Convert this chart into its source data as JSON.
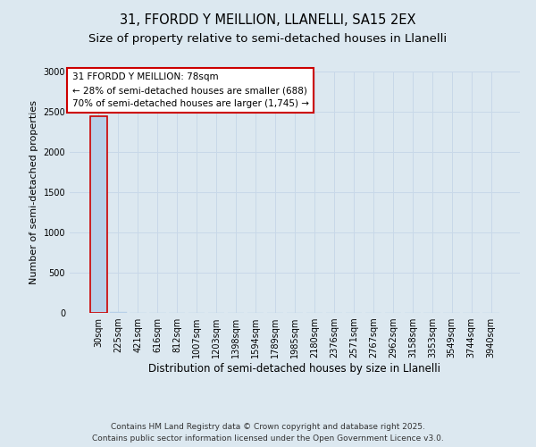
{
  "title_line1": "31, FFORDD Y MEILLION, LLANELLI, SA15 2EX",
  "title_line2": "Size of property relative to semi-detached houses in Llanelli",
  "xlabel": "Distribution of semi-detached houses by size in Llanelli",
  "ylabel": "Number of semi-detached properties",
  "categories": [
    "30sqm",
    "225sqm",
    "421sqm",
    "616sqm",
    "812sqm",
    "1007sqm",
    "1203sqm",
    "1398sqm",
    "1594sqm",
    "1789sqm",
    "1985sqm",
    "2180sqm",
    "2376sqm",
    "2571sqm",
    "2767sqm",
    "2962sqm",
    "3158sqm",
    "3353sqm",
    "3549sqm",
    "3744sqm",
    "3940sqm"
  ],
  "values": [
    2450,
    15,
    2,
    1,
    0,
    0,
    0,
    0,
    0,
    0,
    0,
    0,
    0,
    0,
    0,
    0,
    0,
    0,
    0,
    0,
    0
  ],
  "bar_color": "#b8d0e8",
  "bar_edge_color": "#b8d0e8",
  "highlight_bar_edge_color": "#cc0000",
  "ylim": [
    0,
    3000
  ],
  "yticks": [
    0,
    500,
    1000,
    1500,
    2000,
    2500,
    3000
  ],
  "annotation_text_line1": "31 FFORDD Y MEILLION: 78sqm",
  "annotation_text_line2": "← 28% of semi-detached houses are smaller (688)",
  "annotation_text_line3": "70% of semi-detached houses are larger (1,745) →",
  "annotation_box_color": "#ffffff",
  "annotation_box_edge_color": "#cc0000",
  "grid_color": "#c8d8e8",
  "background_color": "#dce8f0",
  "footer_line1": "Contains HM Land Registry data © Crown copyright and database right 2025.",
  "footer_line2": "Contains public sector information licensed under the Open Government Licence v3.0.",
  "title_fontsize": 10.5,
  "subtitle_fontsize": 9.5,
  "ylabel_fontsize": 8,
  "xlabel_fontsize": 8.5,
  "tick_fontsize": 7,
  "annotation_fontsize": 7.5,
  "footer_fontsize": 6.5
}
